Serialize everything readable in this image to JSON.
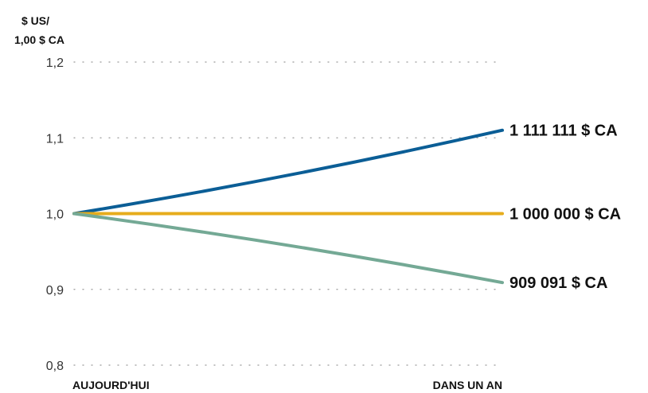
{
  "chart_data": {
    "type": "line",
    "title": "",
    "ylabel_lines": [
      "$ US/",
      "1,00 $ CA"
    ],
    "xlabel": "",
    "categories": [
      "AUJOURD'HUI",
      "DANS UN AN"
    ],
    "y_ticks": [
      {
        "value": 0.8,
        "label": "0,8"
      },
      {
        "value": 0.9,
        "label": "0,9"
      },
      {
        "value": 1.0,
        "label": "1,0"
      },
      {
        "value": 1.1,
        "label": "1,1"
      },
      {
        "value": 1.2,
        "label": "1,2"
      }
    ],
    "ylim": [
      0.8,
      1.2
    ],
    "grid": true,
    "series": [
      {
        "values": [
          1.0,
          1.11
        ],
        "end_label": "1 111 111 $ CA",
        "color": "#0b5e96",
        "curve": "concave-up"
      },
      {
        "values": [
          1.0,
          1.0
        ],
        "end_label": "1 000 000 $ CA",
        "color": "#e6ac1c",
        "curve": "straight"
      },
      {
        "values": [
          1.0,
          0.909
        ],
        "end_label": "909 091 $ CA",
        "color": "#74a995",
        "curve": "concave-up"
      }
    ]
  }
}
